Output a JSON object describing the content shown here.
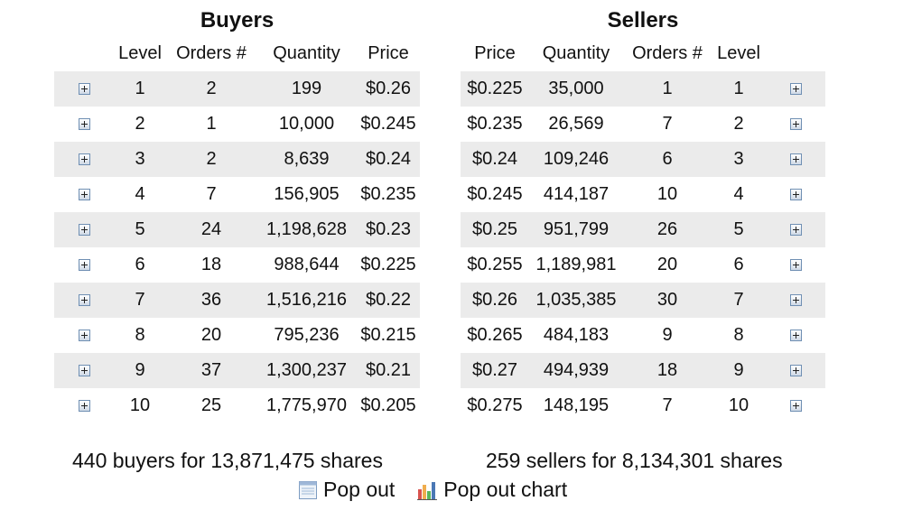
{
  "buyers": {
    "title": "Buyers",
    "headers": [
      "Level",
      "Orders #",
      "Quantity",
      "Price"
    ],
    "rows": [
      {
        "level": "1",
        "orders": "2",
        "quantity": "199",
        "price": "$0.26"
      },
      {
        "level": "2",
        "orders": "1",
        "quantity": "10,000",
        "price": "$0.245"
      },
      {
        "level": "3",
        "orders": "2",
        "quantity": "8,639",
        "price": "$0.24"
      },
      {
        "level": "4",
        "orders": "7",
        "quantity": "156,905",
        "price": "$0.235"
      },
      {
        "level": "5",
        "orders": "24",
        "quantity": "1,198,628",
        "price": "$0.23"
      },
      {
        "level": "6",
        "orders": "18",
        "quantity": "988,644",
        "price": "$0.225"
      },
      {
        "level": "7",
        "orders": "36",
        "quantity": "1,516,216",
        "price": "$0.22"
      },
      {
        "level": "8",
        "orders": "20",
        "quantity": "795,236",
        "price": "$0.215"
      },
      {
        "level": "9",
        "orders": "37",
        "quantity": "1,300,237",
        "price": "$0.21"
      },
      {
        "level": "10",
        "orders": "25",
        "quantity": "1,775,970",
        "price": "$0.205"
      }
    ],
    "summary": "440 buyers for 13,871,475 shares"
  },
  "sellers": {
    "title": "Sellers",
    "headers": [
      "Price",
      "Quantity",
      "Orders #",
      "Level"
    ],
    "rows": [
      {
        "price": "$0.225",
        "quantity": "35,000",
        "orders": "1",
        "level": "1"
      },
      {
        "price": "$0.235",
        "quantity": "26,569",
        "orders": "7",
        "level": "2"
      },
      {
        "price": "$0.24",
        "quantity": "109,246",
        "orders": "6",
        "level": "3"
      },
      {
        "price": "$0.245",
        "quantity": "414,187",
        "orders": "10",
        "level": "4"
      },
      {
        "price": "$0.25",
        "quantity": "951,799",
        "orders": "26",
        "level": "5"
      },
      {
        "price": "$0.255",
        "quantity": "1,189,981",
        "orders": "20",
        "level": "6"
      },
      {
        "price": "$0.26",
        "quantity": "1,035,385",
        "orders": "30",
        "level": "7"
      },
      {
        "price": "$0.265",
        "quantity": "484,183",
        "orders": "9",
        "level": "8"
      },
      {
        "price": "$0.27",
        "quantity": "494,939",
        "orders": "18",
        "level": "9"
      },
      {
        "price": "$0.275",
        "quantity": "148,195",
        "orders": "7",
        "level": "10"
      }
    ],
    "summary": "259 sellers for 8,134,301 shares"
  },
  "links": {
    "pop_out": "Pop out",
    "pop_out_chart": "Pop out chart"
  },
  "icons": {
    "row_expand": "plus-box-icon",
    "pop_out": "window-icon",
    "pop_out_chart": "bar-chart-icon"
  }
}
